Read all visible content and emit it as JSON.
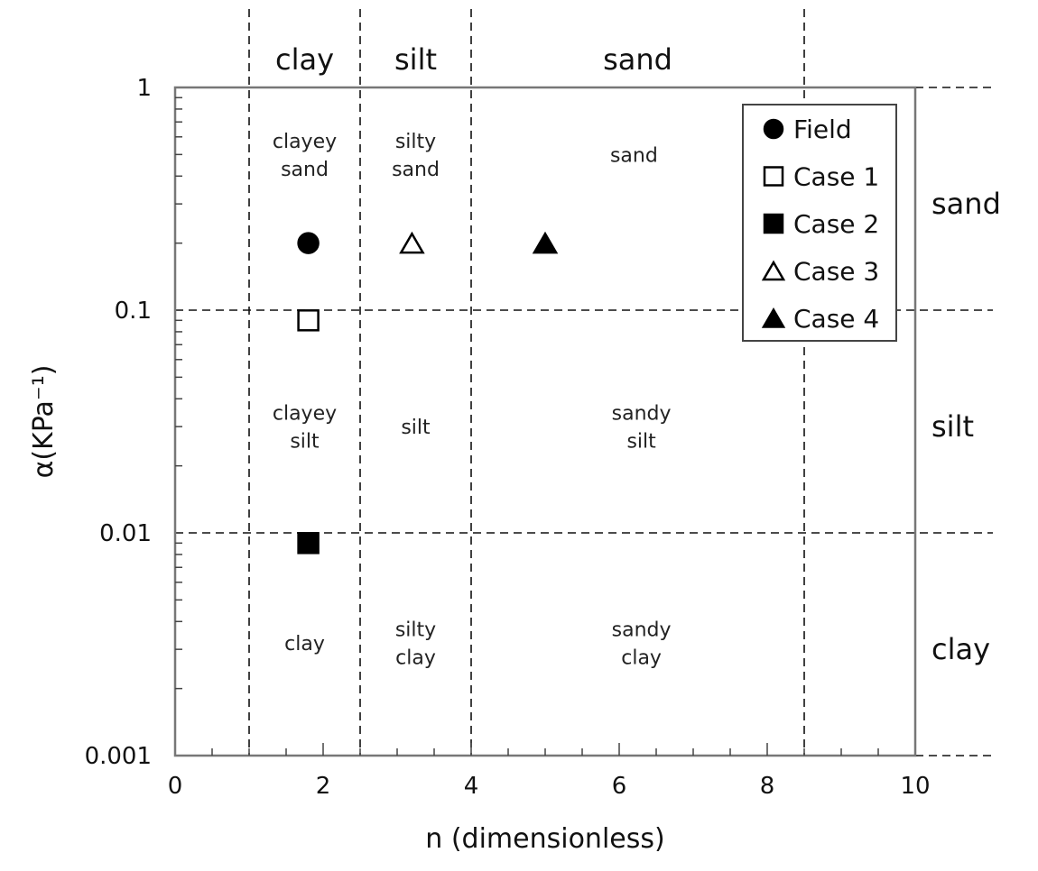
{
  "chart_data": {
    "type": "scatter",
    "title": "",
    "xlabel": "n (dimensionless)",
    "ylabel": "α(KPa⁻¹)",
    "xlim": [
      0,
      10
    ],
    "ylim": [
      0.001,
      1
    ],
    "y_scale": "log",
    "grid": "dashed boundary lines at n = 1, 2.5, 4, 8.5 and α = 0.01, 0.1",
    "x_ticks": [
      "0",
      "2",
      "4",
      "6",
      "8",
      "10"
    ],
    "y_ticks": [
      "0.001",
      "0.01",
      "0.1",
      "1"
    ],
    "x_zone_labels": [
      {
        "label": "clay",
        "x_center": 1.75
      },
      {
        "label": "silt",
        "x_center": 3.25
      },
      {
        "label": "sand",
        "x_center": 6.25
      }
    ],
    "y_zone_labels": [
      {
        "label": "sand",
        "y_center": 0.3
      },
      {
        "label": "silt",
        "y_center": 0.03
      },
      {
        "label": "clay",
        "y_center": 0.003
      }
    ],
    "regions": [
      {
        "lines": [
          "clayey",
          "sand"
        ],
        "x": 1.75,
        "y": 0.5
      },
      {
        "lines": [
          "silty",
          "sand"
        ],
        "x": 3.25,
        "y": 0.5
      },
      {
        "lines": [
          "sand"
        ],
        "x": 6.2,
        "y": 0.5
      },
      {
        "lines": [
          "clayey",
          "silt"
        ],
        "x": 1.75,
        "y": 0.03
      },
      {
        "lines": [
          "silt"
        ],
        "x": 3.25,
        "y": 0.03
      },
      {
        "lines": [
          "sandy",
          "silt"
        ],
        "x": 6.3,
        "y": 0.03
      },
      {
        "lines": [
          "clay"
        ],
        "x": 1.75,
        "y": 0.0032
      },
      {
        "lines": [
          "silty",
          "clay"
        ],
        "x": 3.25,
        "y": 0.0032
      },
      {
        "lines": [
          "sandy",
          "clay"
        ],
        "x": 6.3,
        "y": 0.0032
      }
    ],
    "series": [
      {
        "name": "Field",
        "marker": "circle-filled",
        "points": [
          {
            "x": 1.8,
            "y": 0.2
          }
        ]
      },
      {
        "name": "Case 1",
        "marker": "square-open",
        "points": [
          {
            "x": 1.8,
            "y": 0.09
          }
        ]
      },
      {
        "name": "Case 2",
        "marker": "square-filled",
        "points": [
          {
            "x": 1.8,
            "y": 0.009
          }
        ]
      },
      {
        "name": "Case 3",
        "marker": "triangle-open",
        "points": [
          {
            "x": 3.2,
            "y": 0.2
          }
        ]
      },
      {
        "name": "Case 4",
        "marker": "triangle-filled",
        "points": [
          {
            "x": 5.0,
            "y": 0.2
          }
        ]
      }
    ],
    "legend_position": "top-right"
  }
}
